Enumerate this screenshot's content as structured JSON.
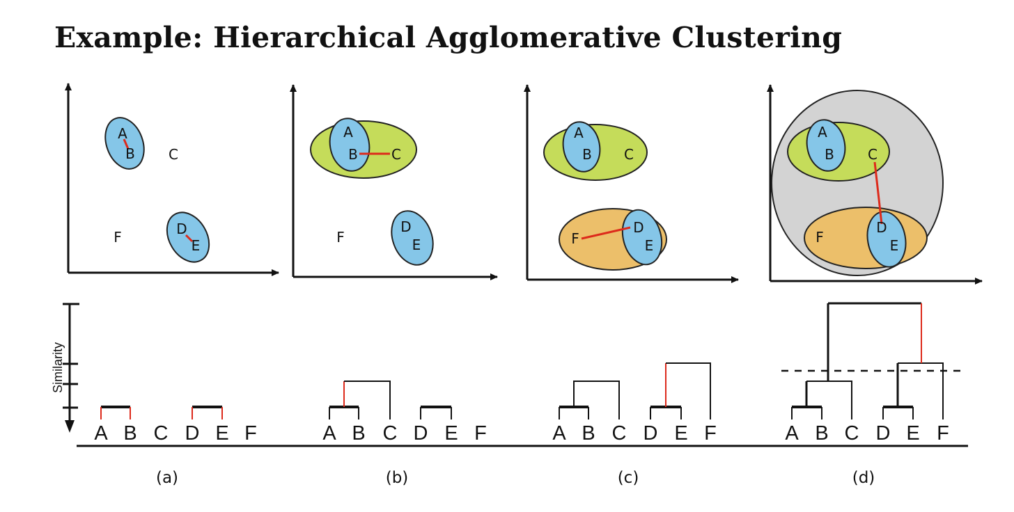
{
  "title": "Example: Hierarchical Agglomerative Clustering",
  "y_axis_label": "Similarity",
  "points": [
    "A",
    "B",
    "C",
    "D",
    "E",
    "F"
  ],
  "panels": [
    {
      "id": "a",
      "caption": "(a)"
    },
    {
      "id": "b",
      "caption": "(b)"
    },
    {
      "id": "c",
      "caption": "(c)"
    },
    {
      "id": "d",
      "caption": "(d)"
    }
  ],
  "colors": {
    "cluster_blue": "#85c6e8",
    "cluster_green": "#c5dc5a",
    "cluster_orange": "#ecbf6a",
    "cluster_gray": "#d3d3d3",
    "merge_link": "#dd2a1b",
    "ink": "#111111"
  }
}
